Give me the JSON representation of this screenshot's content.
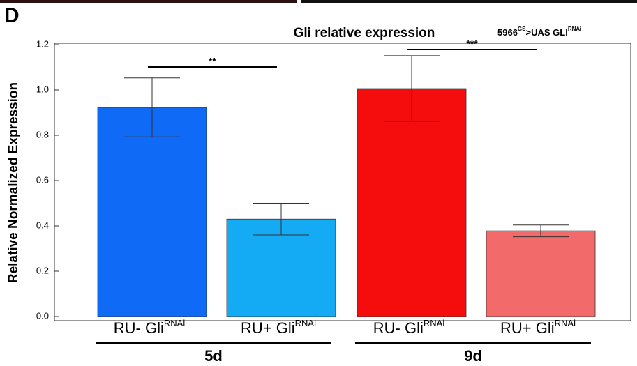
{
  "panel_label": "D",
  "chart_data": {
    "type": "bar",
    "title": "Gli relative expression",
    "annotation": {
      "parts": [
        "5966",
        "GS",
        ">UAS GLI",
        "RNAi"
      ]
    },
    "y_label": "Relative Normalized Expression",
    "categories": [
      "RU- Gli",
      "RU+ Gli",
      "RU- Gli",
      "RU+ Gli"
    ],
    "category_superscripts": [
      "RNAi",
      "RNAi",
      "RNAi",
      "RNAi"
    ],
    "groups": [
      "5d",
      "9d"
    ],
    "values": [
      0.923,
      0.43,
      1.006,
      0.378
    ],
    "errors": [
      0.13,
      0.07,
      0.145,
      0.026
    ],
    "colors": [
      "#0f6af5",
      "#14aaf4",
      "#f50c0c",
      "#f26a6a"
    ],
    "significance": [
      "**",
      "***"
    ],
    "ylim": [
      0,
      1.2
    ],
    "yticks": [
      {
        "value": 0,
        "label": "0.0"
      },
      0.2,
      0.4,
      0.6,
      0.8,
      {
        "value": 1,
        "label": "1.0"
      },
      1.2
    ]
  }
}
